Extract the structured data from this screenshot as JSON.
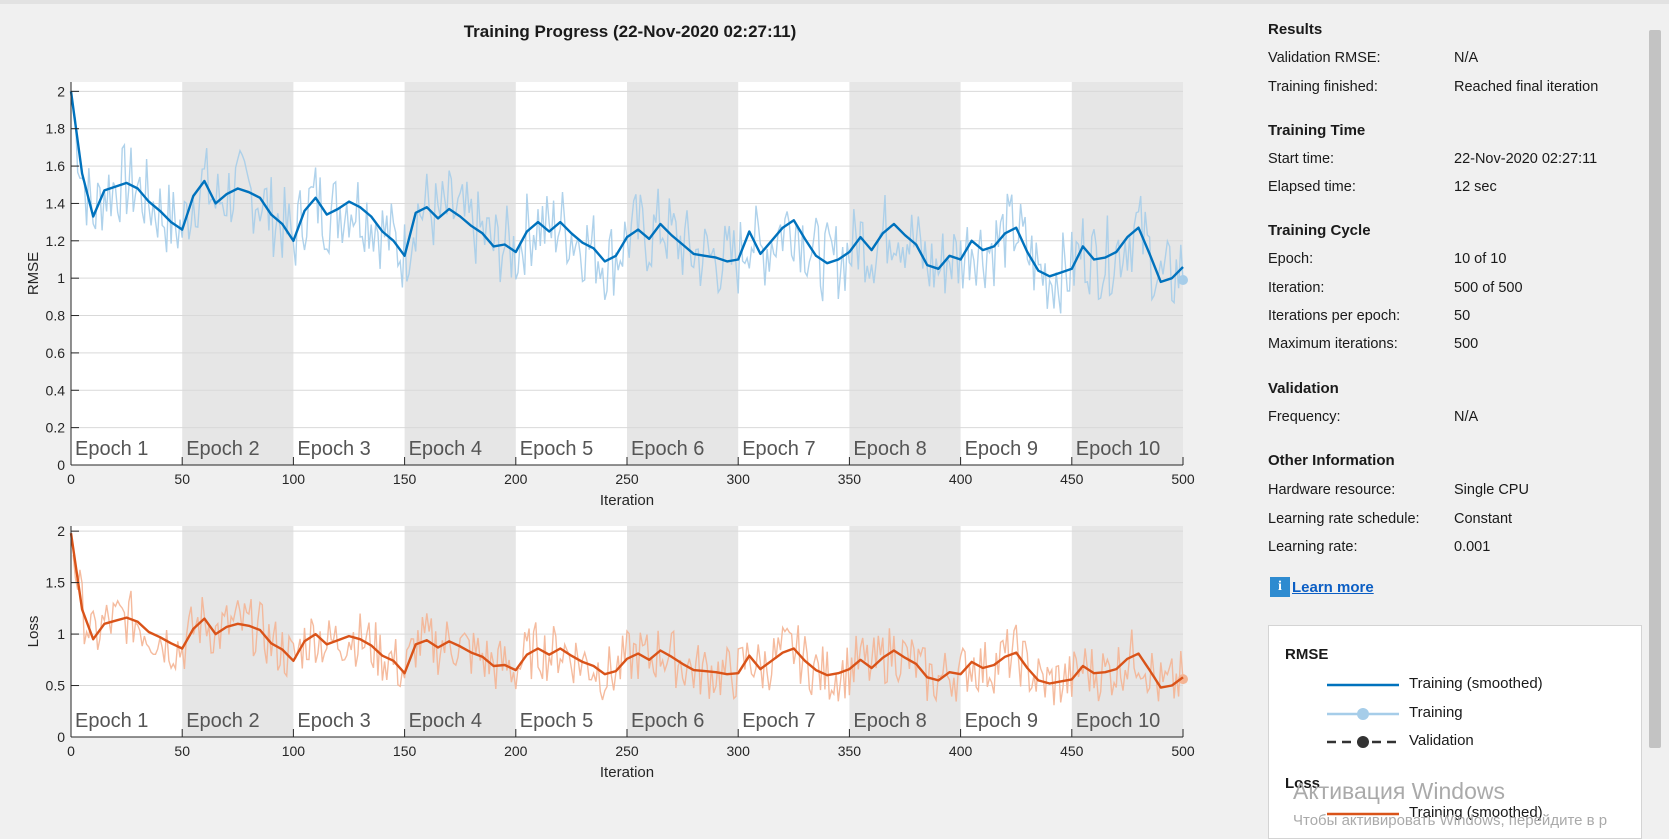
{
  "title": "Training Progress (22-Nov-2020 02:27:11)",
  "chart_data": [
    {
      "type": "line",
      "ylabel": "RMSE",
      "xlabel": "Iteration",
      "xlim": [
        0,
        500
      ],
      "ylim": [
        0,
        2.05
      ],
      "xticks": [
        "0",
        "50",
        "100",
        "150",
        "200",
        "250",
        "300",
        "350",
        "400",
        "450",
        "500"
      ],
      "yticks": [
        "0",
        "0.2",
        "0.4",
        "0.6",
        "0.8",
        "1",
        "1.2",
        "1.4",
        "1.6",
        "1.8",
        "2"
      ],
      "epoch_labels": [
        "Epoch 1",
        "Epoch 2",
        "Epoch 3",
        "Epoch 4",
        "Epoch 5",
        "Epoch 6",
        "Epoch 7",
        "Epoch 8",
        "Epoch 9",
        "Epoch 10"
      ],
      "series": [
        {
          "name": "Training (smoothed)",
          "color": "#0072bd",
          "x": [
            0,
            5,
            10,
            15,
            20,
            25,
            30,
            35,
            40,
            45,
            50,
            55,
            60,
            65,
            70,
            75,
            80,
            85,
            90,
            95,
            100,
            105,
            110,
            115,
            120,
            125,
            130,
            135,
            140,
            145,
            150,
            155,
            160,
            165,
            170,
            175,
            180,
            185,
            190,
            195,
            200,
            205,
            210,
            215,
            220,
            225,
            230,
            235,
            240,
            245,
            250,
            255,
            260,
            265,
            270,
            275,
            280,
            285,
            290,
            295,
            300,
            305,
            310,
            315,
            320,
            325,
            330,
            335,
            340,
            345,
            350,
            355,
            360,
            365,
            370,
            375,
            380,
            385,
            390,
            395,
            400,
            405,
            410,
            415,
            420,
            425,
            430,
            435,
            440,
            445,
            450,
            455,
            460,
            465,
            470,
            475,
            480,
            485,
            490,
            495,
            500
          ],
          "values": [
            2.0,
            1.56,
            1.33,
            1.47,
            1.49,
            1.51,
            1.48,
            1.41,
            1.36,
            1.3,
            1.26,
            1.44,
            1.52,
            1.4,
            1.45,
            1.48,
            1.46,
            1.43,
            1.34,
            1.29,
            1.2,
            1.36,
            1.43,
            1.34,
            1.37,
            1.41,
            1.38,
            1.33,
            1.25,
            1.2,
            1.12,
            1.35,
            1.38,
            1.32,
            1.37,
            1.33,
            1.28,
            1.24,
            1.17,
            1.18,
            1.14,
            1.25,
            1.3,
            1.25,
            1.3,
            1.24,
            1.19,
            1.16,
            1.09,
            1.12,
            1.22,
            1.26,
            1.21,
            1.29,
            1.23,
            1.18,
            1.13,
            1.12,
            1.11,
            1.09,
            1.1,
            1.25,
            1.13,
            1.2,
            1.27,
            1.31,
            1.21,
            1.12,
            1.08,
            1.1,
            1.14,
            1.22,
            1.15,
            1.24,
            1.29,
            1.23,
            1.18,
            1.07,
            1.05,
            1.12,
            1.1,
            1.2,
            1.15,
            1.17,
            1.24,
            1.27,
            1.14,
            1.04,
            1.01,
            1.03,
            1.05,
            1.17,
            1.1,
            1.11,
            1.14,
            1.22,
            1.27,
            1.13,
            0.98,
            1.0,
            1.06
          ]
        },
        {
          "name": "Training",
          "color": "#a6cde9"
        },
        {
          "name": "Validation",
          "color": "#333333"
        }
      ]
    },
    {
      "type": "line",
      "ylabel": "Loss",
      "xlabel": "Iteration",
      "xlim": [
        0,
        500
      ],
      "ylim": [
        0,
        2.05
      ],
      "xticks": [
        "0",
        "50",
        "100",
        "150",
        "200",
        "250",
        "300",
        "350",
        "400",
        "450",
        "500"
      ],
      "yticks": [
        "0",
        "0.5",
        "1",
        "1.5",
        "2"
      ],
      "epoch_labels": [
        "Epoch 1",
        "Epoch 2",
        "Epoch 3",
        "Epoch 4",
        "Epoch 5",
        "Epoch 6",
        "Epoch 7",
        "Epoch 8",
        "Epoch 9",
        "Epoch 10"
      ],
      "series": [
        {
          "name": "Training (smoothed)",
          "color": "#d95319",
          "x": [
            0,
            5,
            10,
            15,
            20,
            25,
            30,
            35,
            40,
            45,
            50,
            55,
            60,
            65,
            70,
            75,
            80,
            85,
            90,
            95,
            100,
            105,
            110,
            115,
            120,
            125,
            130,
            135,
            140,
            145,
            150,
            155,
            160,
            165,
            170,
            175,
            180,
            185,
            190,
            195,
            200,
            205,
            210,
            215,
            220,
            225,
            230,
            235,
            240,
            245,
            250,
            255,
            260,
            265,
            270,
            275,
            280,
            285,
            290,
            295,
            300,
            305,
            310,
            315,
            320,
            325,
            330,
            335,
            340,
            345,
            350,
            355,
            360,
            365,
            370,
            375,
            380,
            385,
            390,
            395,
            400,
            405,
            410,
            415,
            420,
            425,
            430,
            435,
            440,
            445,
            450,
            455,
            460,
            465,
            470,
            475,
            480,
            485,
            490,
            495,
            500
          ],
          "values": [
            1.98,
            1.24,
            0.95,
            1.1,
            1.13,
            1.16,
            1.12,
            1.02,
            0.97,
            0.91,
            0.86,
            1.05,
            1.15,
            1.0,
            1.07,
            1.1,
            1.08,
            1.04,
            0.91,
            0.85,
            0.74,
            0.93,
            1.0,
            0.9,
            0.94,
            0.98,
            0.95,
            0.89,
            0.79,
            0.74,
            0.62,
            0.9,
            0.94,
            0.87,
            0.93,
            0.88,
            0.82,
            0.78,
            0.69,
            0.7,
            0.65,
            0.8,
            0.86,
            0.8,
            0.86,
            0.79,
            0.73,
            0.69,
            0.61,
            0.64,
            0.76,
            0.81,
            0.75,
            0.84,
            0.78,
            0.71,
            0.65,
            0.64,
            0.63,
            0.61,
            0.62,
            0.79,
            0.66,
            0.74,
            0.82,
            0.86,
            0.74,
            0.65,
            0.6,
            0.62,
            0.66,
            0.75,
            0.67,
            0.77,
            0.84,
            0.77,
            0.71,
            0.58,
            0.55,
            0.63,
            0.61,
            0.73,
            0.67,
            0.7,
            0.78,
            0.82,
            0.67,
            0.55,
            0.52,
            0.54,
            0.56,
            0.69,
            0.62,
            0.63,
            0.66,
            0.76,
            0.81,
            0.65,
            0.48,
            0.5,
            0.58
          ]
        },
        {
          "name": "Training",
          "color": "#f4b494"
        },
        {
          "name": "Validation",
          "color": "#333333"
        }
      ]
    }
  ],
  "side": {
    "results_h": "Results",
    "validation_rmse_k": "Validation RMSE:",
    "validation_rmse_v": "N/A",
    "training_finished_k": "Training finished:",
    "training_finished_v": "Reached final iteration",
    "time_h": "Training Time",
    "start_k": "Start time:",
    "start_v": "22-Nov-2020 02:27:11",
    "elapsed_k": "Elapsed time:",
    "elapsed_v": "12 sec",
    "cycle_h": "Training Cycle",
    "epoch_k": "Epoch:",
    "epoch_v": "10 of 10",
    "iter_k": "Iteration:",
    "iter_v": "500 of 500",
    "ipe_k": "Iterations per epoch:",
    "ipe_v": "50",
    "maxit_k": "Maximum iterations:",
    "maxit_v": "500",
    "val_h": "Validation",
    "freq_k": "Frequency:",
    "freq_v": "N/A",
    "other_h": "Other Information",
    "hw_k": "Hardware resource:",
    "hw_v": "Single CPU",
    "lrs_k": "Learning rate schedule:",
    "lrs_v": "Constant",
    "lr_k": "Learning rate:",
    "lr_v": "0.001",
    "learn_more": "Learn more",
    "info_glyph": "i"
  },
  "legend": {
    "rmse_h": "RMSE",
    "rmse_items": [
      "Training (smoothed)",
      "Training",
      "Validation"
    ],
    "loss_h": "Loss",
    "loss_items": [
      "Training (smoothed)"
    ]
  },
  "watermark": {
    "line1": "Активация Windows",
    "line2": "Чтобы активировать Windows, перейдите в р"
  }
}
